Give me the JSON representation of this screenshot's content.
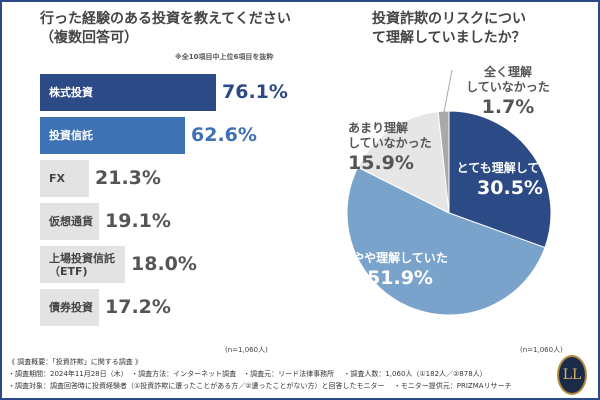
{
  "chart_data": [
    {
      "type": "bar",
      "orientation": "horizontal",
      "title": "行った経験のある投資を教えてください（複数回答可）",
      "note": "※全10項目中上位6項目を抜粋",
      "sample": "(n=1,060人)",
      "categories": [
        "株式投資",
        "投資信託",
        "FX",
        "仮想通貨",
        "上場投資信託（ETF)",
        "債券投資"
      ],
      "values": [
        76.1,
        62.6,
        21.3,
        19.1,
        18.0,
        17.2
      ],
      "labels": [
        "76.1%",
        "62.6%",
        "21.3%",
        "19.1%",
        "18.0%",
        "17.2%"
      ],
      "colors": [
        "#2c4a86",
        "#3f72b4",
        "#e3e3e3",
        "#e3e3e3",
        "#e3e3e3",
        "#e3e3e3"
      ]
    },
    {
      "type": "pie",
      "title": "投資詐欺のリスクについて理解していましたか？",
      "sample": "(n=1,060人)",
      "categories": [
        "とても理解していた",
        "やや理解していた",
        "あまり理解していなかった",
        "全く理解していなかった"
      ],
      "values": [
        30.5,
        51.9,
        15.9,
        1.7
      ],
      "labels": [
        "30.5%",
        "51.9%",
        "15.9%",
        "1.7%"
      ],
      "colors": [
        "#2c4a86",
        "#7aa3cc",
        "#e6e6e6",
        "#a9a9a9"
      ]
    }
  ],
  "footer": {
    "heading": "《 調査概要：「投資詐欺」に関する調査 》",
    "line1": "・調査期間：2024年11月28日（木）　・調査方法：インターネット調査　・調査元：リード法律事務所　 ・調査人数：1,060人（①182人／②878人）",
    "line2": "・調査対象：調査回答時に投資経験者（①投資詐欺に遭ったことがある方／②遭ったことがない方）と回答したモニター　 ・モニター提供元：PRIZMAリサーチ",
    "logo": "LL"
  }
}
